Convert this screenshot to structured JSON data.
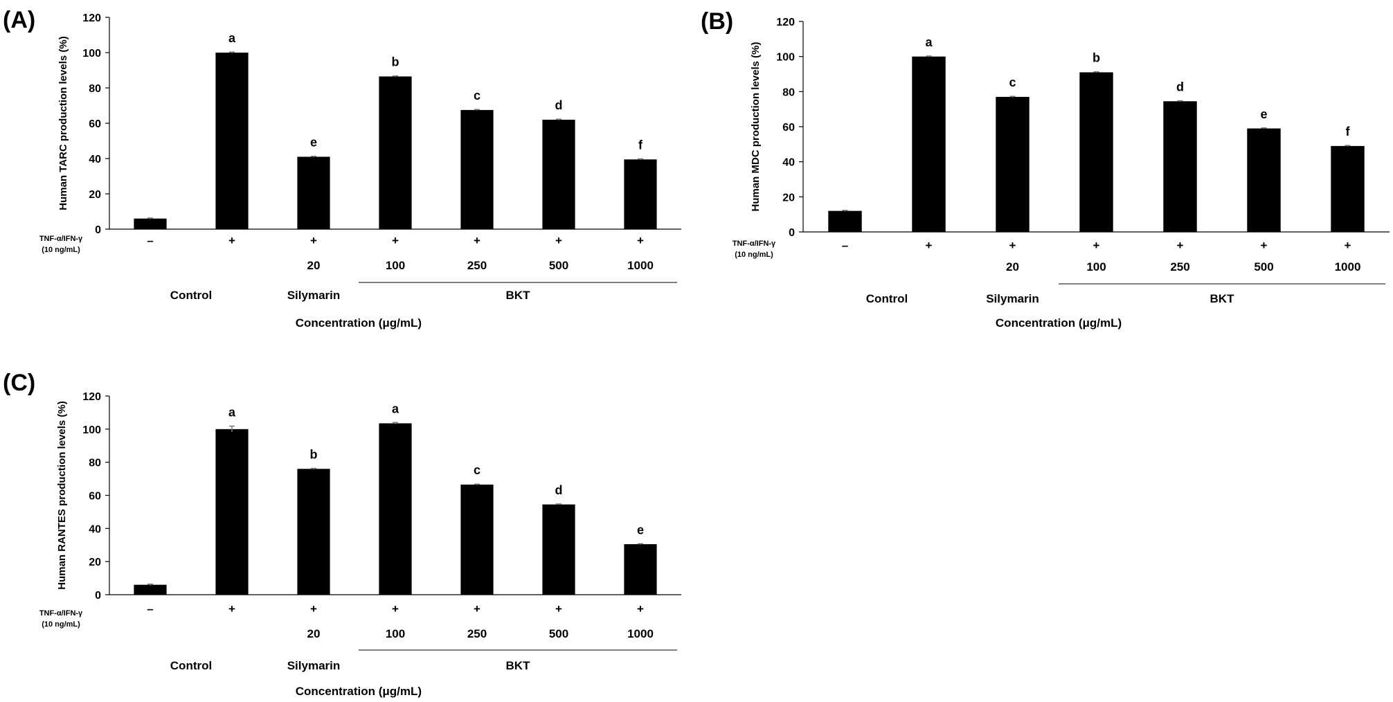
{
  "figure": {
    "treatment_label": "TNF-α/IFN-γ",
    "treatment_dose": "(10 ng/mL)",
    "treatment_signs": [
      "–",
      "+",
      "+",
      "+",
      "+",
      "+",
      "+"
    ],
    "concentrations": [
      "",
      "",
      "20",
      "100",
      "250",
      "500",
      "1000"
    ],
    "groups": {
      "control": "Control",
      "silymarin": "Silymarin",
      "bkt": "BKT"
    },
    "xlabel": "Concentration (μg/mL)",
    "yticks": [
      0,
      20,
      40,
      60,
      80,
      100,
      120
    ]
  },
  "chart_data": [
    {
      "panel": "(A)",
      "type": "bar",
      "categories": [
        "–",
        "+",
        "+ 20",
        "+ 100",
        "+ 250",
        "+ 500",
        "+ 1000"
      ],
      "values": [
        6,
        100,
        41,
        86.5,
        67.5,
        62,
        39.5
      ],
      "errors": [
        0.3,
        0.3,
        0.3,
        0.3,
        0.3,
        0.3,
        0.3
      ],
      "significance": [
        "",
        "a",
        "e",
        "b",
        "c",
        "d",
        "f"
      ],
      "title": "",
      "xlabel": "Concentration (μg/mL)",
      "ylabel": "Human TARC production levels (%)",
      "ylim": [
        0,
        120
      ],
      "legend": "none",
      "grid": false
    },
    {
      "panel": "(B)",
      "type": "bar",
      "categories": [
        "–",
        "+",
        "+ 20",
        "+ 100",
        "+ 250",
        "+ 500",
        "+ 1000"
      ],
      "values": [
        12,
        100,
        77,
        91,
        74.5,
        59,
        49
      ],
      "errors": [
        0.3,
        0.3,
        0.3,
        0.3,
        0.3,
        0.3,
        0.3
      ],
      "significance": [
        "",
        "a",
        "c",
        "b",
        "d",
        "e",
        "f"
      ],
      "title": "",
      "xlabel": "Concentration (μg/mL)",
      "ylabel": "Human MDC production levels (%)",
      "ylim": [
        0,
        120
      ],
      "legend": "none",
      "grid": false
    },
    {
      "panel": "(C)",
      "type": "bar",
      "categories": [
        "–",
        "+",
        "+ 20",
        "+ 100",
        "+ 250",
        "+ 500",
        "+ 1000"
      ],
      "values": [
        6,
        100,
        76,
        103.5,
        66.5,
        54.5,
        30.5
      ],
      "errors": [
        0.4,
        1.8,
        0.3,
        0.5,
        0.3,
        0.3,
        0.3
      ],
      "significance": [
        "",
        "a",
        "b",
        "a",
        "c",
        "d",
        "e"
      ],
      "title": "",
      "xlabel": "Concentration (μg/mL)",
      "ylabel": "Human RANTES production levels (%)",
      "ylim": [
        0,
        120
      ],
      "legend": "none",
      "grid": false
    }
  ]
}
